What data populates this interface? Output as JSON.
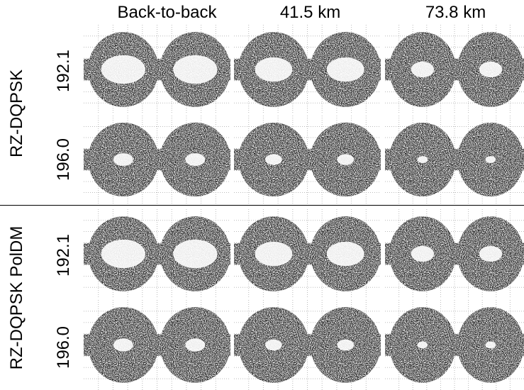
{
  "columns": [
    "Back-to-back",
    "41.5 km",
    "73.8 km"
  ],
  "groups": [
    {
      "label": "RZ-DQPSK",
      "rows": [
        "192.1",
        "196.0"
      ]
    },
    {
      "label": "RZ-DQPSK PolDM",
      "rows": [
        "192.1",
        "196.0"
      ]
    }
  ]
}
